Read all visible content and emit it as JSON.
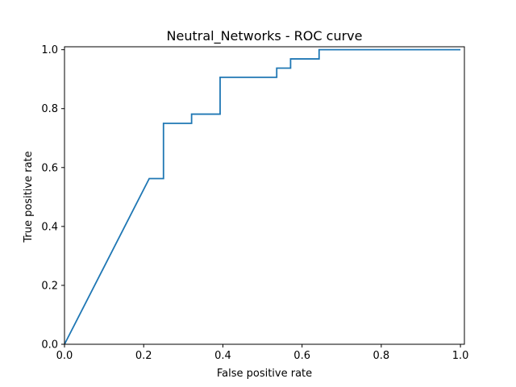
{
  "chart_data": {
    "type": "line",
    "title": "Neutral_Networks - ROC curve",
    "xlabel": "False positive rate",
    "ylabel": "True positive rate",
    "xlim": [
      0.0,
      1.01
    ],
    "ylim": [
      0.0,
      1.01
    ],
    "xticks": [
      "0.0",
      "0.2",
      "0.4",
      "0.6",
      "0.8",
      "1.0"
    ],
    "yticks": [
      "0.0",
      "0.2",
      "0.4",
      "0.6",
      "0.8",
      "1.0"
    ],
    "grid": false,
    "line_color": "#1f77b4",
    "series": [
      {
        "x": [
          0.0,
          0.214,
          0.25,
          0.25,
          0.321,
          0.321,
          0.393,
          0.393,
          0.536,
          0.536,
          0.571,
          0.571,
          0.643,
          0.643,
          1.0
        ],
        "y": [
          0.0,
          0.5625,
          0.5625,
          0.75,
          0.75,
          0.78125,
          0.78125,
          0.90625,
          0.90625,
          0.9375,
          0.9375,
          0.96875,
          0.96875,
          1.0,
          1.0
        ]
      }
    ]
  }
}
